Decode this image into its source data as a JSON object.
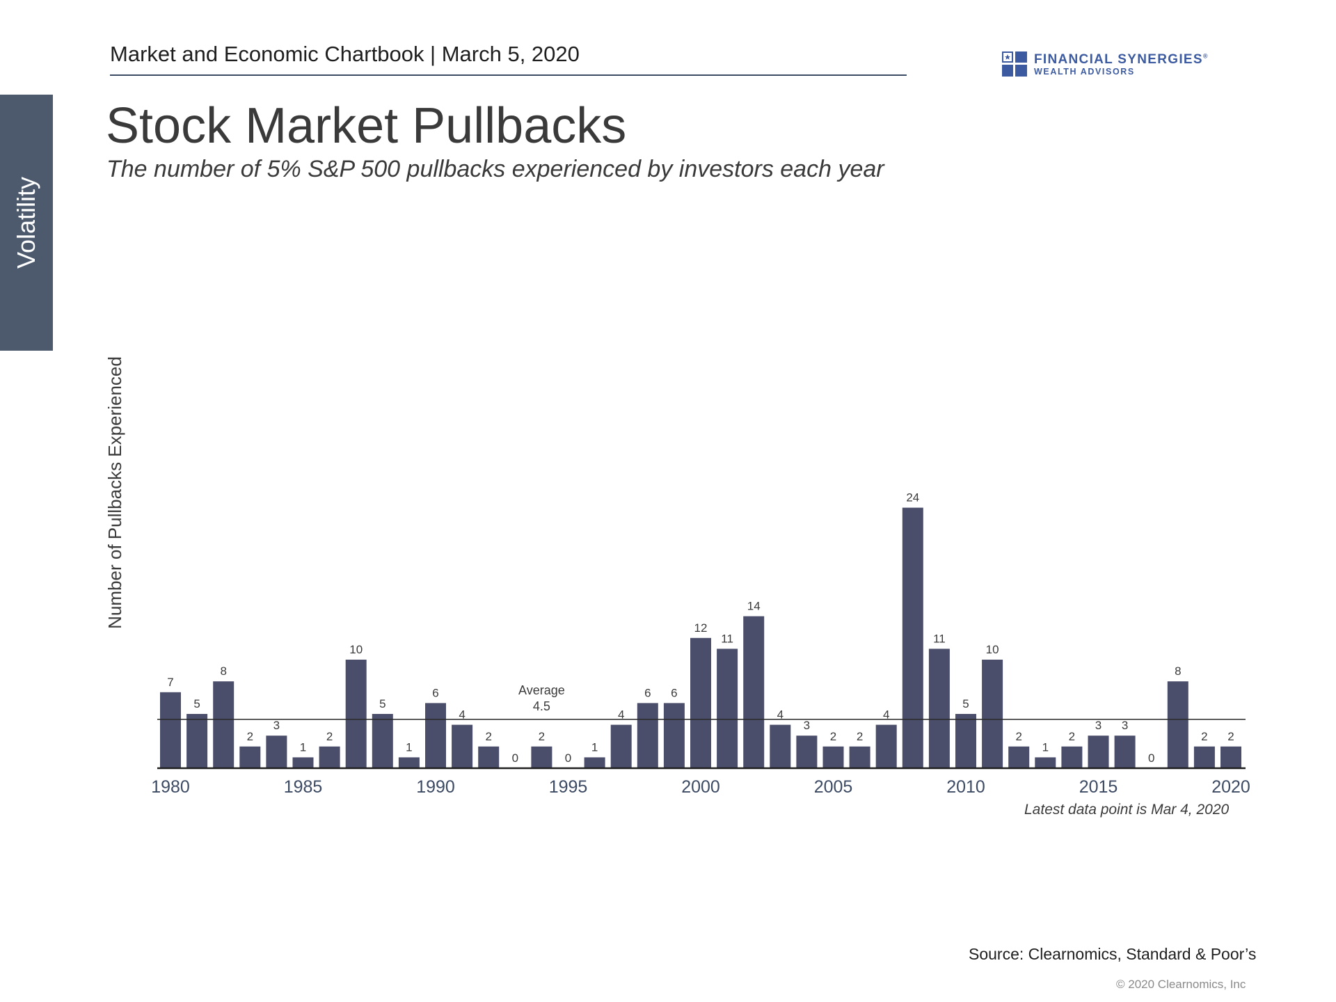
{
  "side_tab": {
    "label": "Volatility"
  },
  "header": {
    "text": "Market and Economic Chartbook | March 5, 2020"
  },
  "logo": {
    "name": "FINANCIAL SYNERGIES",
    "registered": "®",
    "subname": "WEALTH ADVISORS",
    "icon": "flag-logo-icon",
    "color": "#3c5aa0"
  },
  "title": "Stock Market Pullbacks",
  "subtitle": "The number of 5% S&P 500 pullbacks experienced by investors each year",
  "chart_data": {
    "type": "bar",
    "ylabel": "Number of Pullbacks Experienced",
    "xlabel": "",
    "bar_color": "#4a4e6b",
    "categories": [
      1980,
      1981,
      1982,
      1983,
      1984,
      1985,
      1986,
      1987,
      1988,
      1989,
      1990,
      1991,
      1992,
      1993,
      1994,
      1995,
      1996,
      1997,
      1998,
      1999,
      2000,
      2001,
      2002,
      2003,
      2004,
      2005,
      2006,
      2007,
      2008,
      2009,
      2010,
      2011,
      2012,
      2013,
      2014,
      2015,
      2016,
      2017,
      2018,
      2019,
      2020
    ],
    "values": [
      7,
      5,
      8,
      2,
      3,
      1,
      2,
      10,
      5,
      1,
      6,
      4,
      2,
      0,
      2,
      0,
      1,
      4,
      6,
      6,
      12,
      11,
      14,
      4,
      3,
      2,
      2,
      4,
      24,
      11,
      5,
      10,
      2,
      1,
      2,
      3,
      3,
      0,
      8,
      2,
      2
    ],
    "x_ticks": [
      "1980",
      "1985",
      "1990",
      "1995",
      "2000",
      "2005",
      "2010",
      "2015",
      "2020"
    ],
    "ylim": [
      0,
      24
    ],
    "average": {
      "value": 4.5,
      "label": "Average",
      "value_label": "4.5"
    },
    "grid": false,
    "legend": "none"
  },
  "footnote": "Latest data point is Mar 4, 2020",
  "source": "Source: Clearnomics, Standard & Poor’s",
  "copyright": "© 2020 Clearnomics, Inc"
}
